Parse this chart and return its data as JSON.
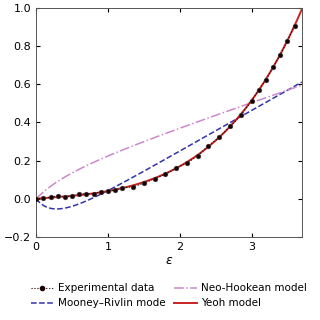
{
  "xlim": [
    0,
    3.7
  ],
  "ylim": [
    -0.2,
    1.0
  ],
  "yticks": [
    -0.2,
    0.0,
    0.2,
    0.4,
    0.6,
    0.8,
    1.0
  ],
  "xticks": [
    0,
    1,
    2,
    3
  ],
  "xlabel": "ε",
  "background_color": "#ffffff",
  "exp_color": "#1a0000",
  "mooney_color": "#3333aa",
  "neo_color": "#cc88cc",
  "yeoh_color": "#cc2222",
  "axis_fontsize": 9,
  "legend_fontsize": 7.5,
  "tick_fontsize": 8
}
